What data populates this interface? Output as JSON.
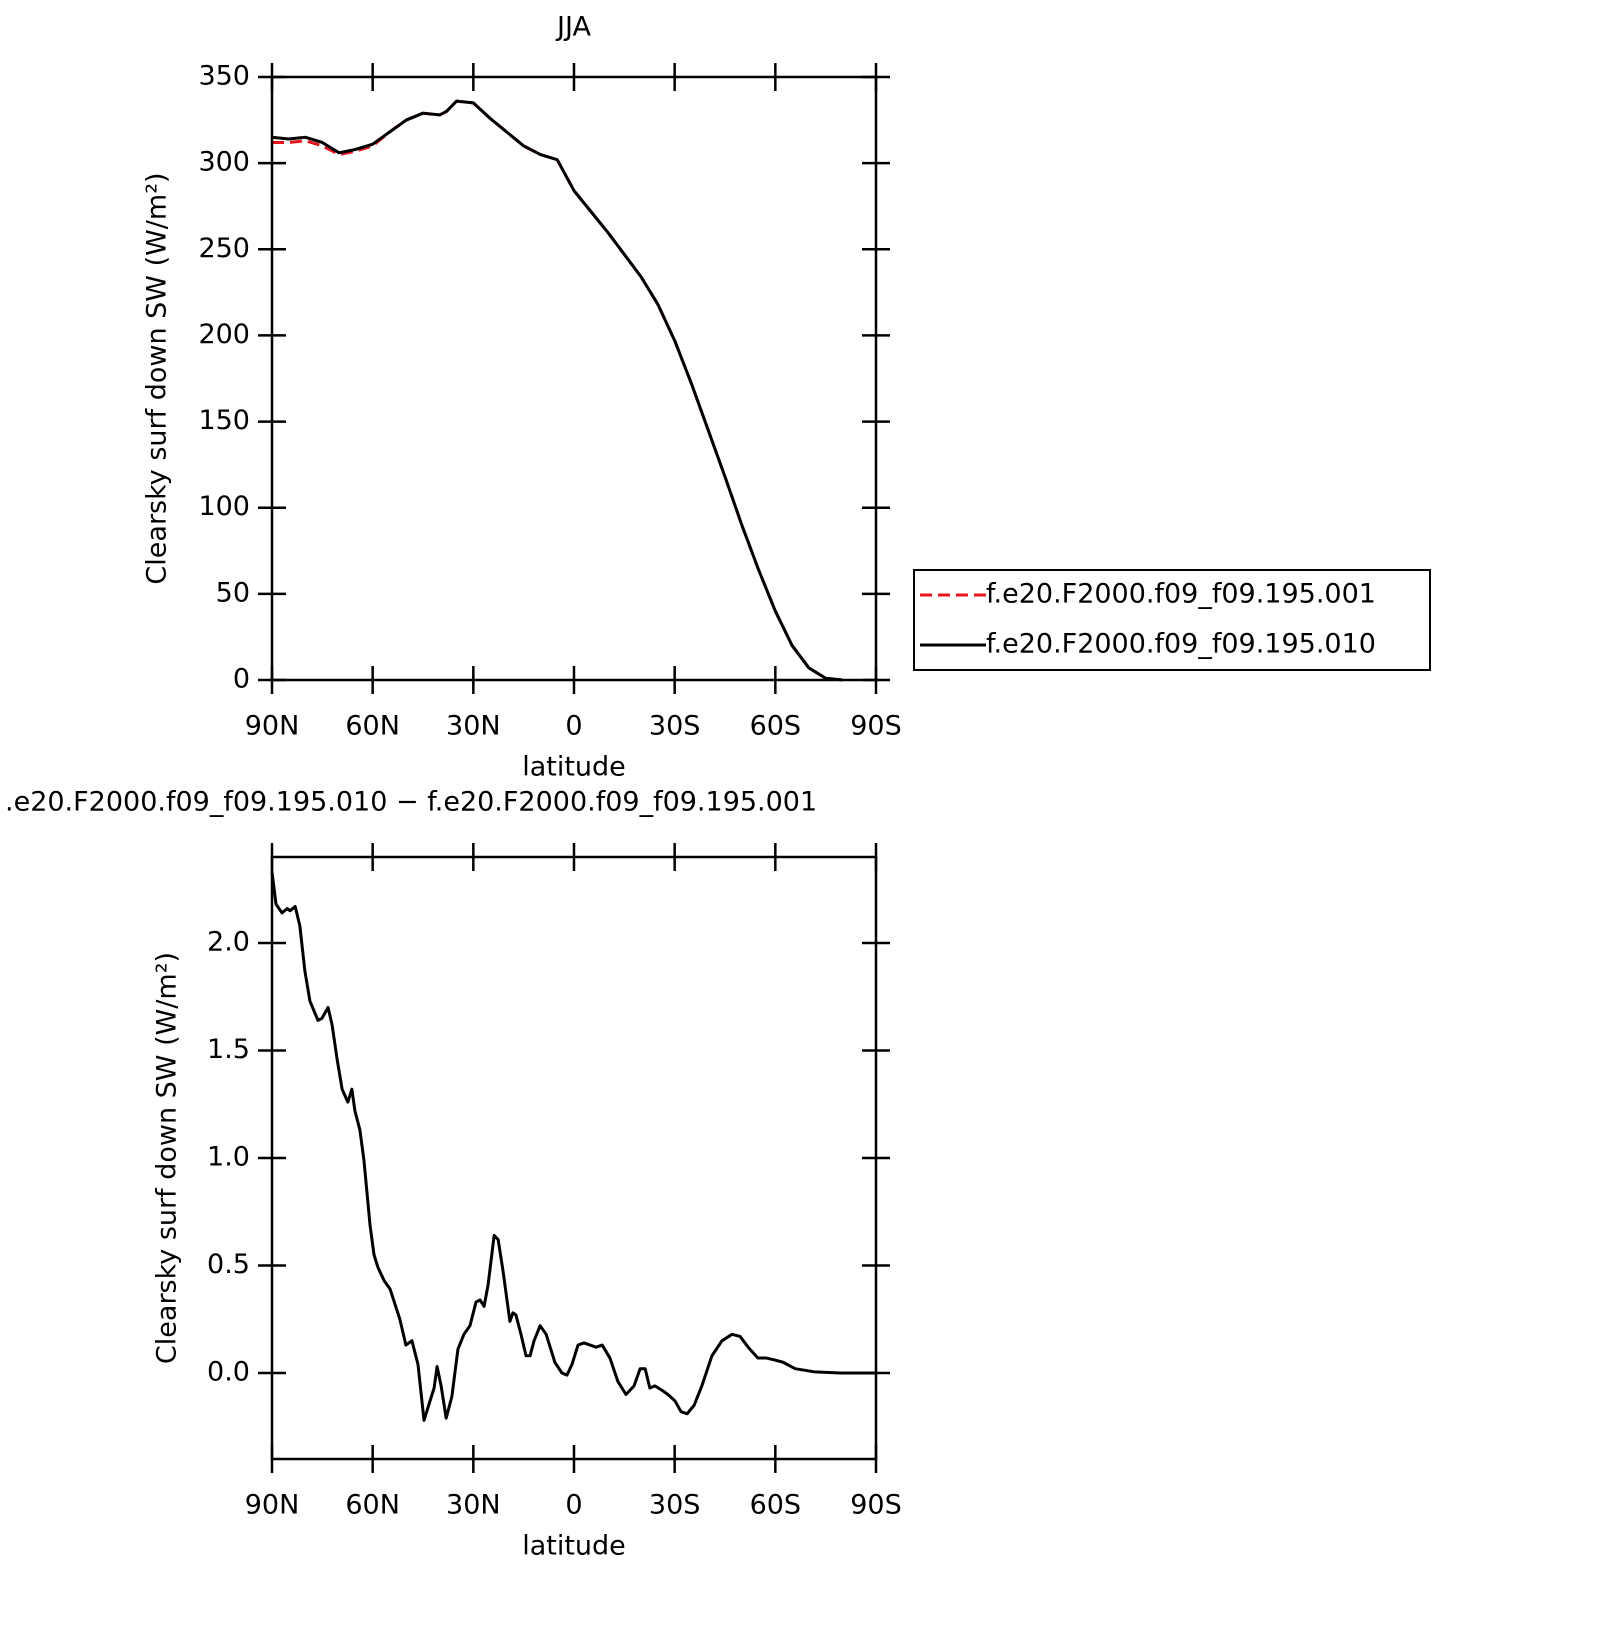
{
  "chart_data": [
    {
      "type": "line",
      "title": "JJA",
      "x_label": "latitude",
      "y_label": "Clearsky surf down SW (W/m²)",
      "x": [
        90,
        85,
        80,
        75,
        70,
        65,
        60,
        55,
        50,
        45,
        40,
        38,
        35,
        30,
        25,
        20,
        15,
        10,
        5,
        0,
        -5,
        -10,
        -15,
        -20,
        -25,
        -30,
        -35,
        -40,
        -45,
        -50,
        -55,
        -60,
        -65,
        -70,
        -75,
        -80
      ],
      "series": [
        {
          "name": "f.e20.F2000.f09_f09.195.001",
          "color": "#e8141b",
          "line_style": "dashed",
          "values": [
            312,
            312,
            313,
            310,
            305,
            307,
            310,
            318,
            325,
            329,
            328,
            330,
            336,
            335,
            326,
            318,
            310,
            305,
            302,
            284,
            272,
            260,
            247,
            234,
            218,
            197,
            172,
            145,
            118,
            90,
            64,
            40,
            20,
            7,
            1,
            0
          ]
        },
        {
          "name": "f.e20.F2000.f09_f09.195.010",
          "color": "#000000",
          "line_style": "solid",
          "values": [
            315,
            314,
            315,
            312,
            306,
            308,
            311,
            318,
            325,
            329,
            328,
            330,
            336,
            335,
            326,
            318,
            310,
            305,
            302,
            284,
            272,
            260,
            247,
            234,
            218,
            197,
            172,
            145,
            118,
            90,
            64,
            40,
            20,
            7,
            1,
            0
          ]
        }
      ],
      "xlim": [
        90,
        -90
      ],
      "xticks": [
        {
          "value": 90,
          "label": "90N"
        },
        {
          "value": 60,
          "label": "60N"
        },
        {
          "value": 30,
          "label": "30N"
        },
        0,
        {
          "value": -30,
          "label": "30S"
        },
        {
          "value": -60,
          "label": "60S"
        },
        {
          "value": -90,
          "label": "90S"
        }
      ],
      "ylim": [
        0,
        350
      ],
      "yticks": [
        0,
        50,
        100,
        150,
        200,
        250,
        300,
        350
      ],
      "legend": "outside-right"
    },
    {
      "type": "line",
      "title": ".e20.F2000.f09_f09.195.010 − f.e20.F2000.f09_f09.195.001",
      "x_label": "latitude",
      "y_label": "Clearsky surf down SW (W/m²)",
      "x": [
        90,
        88.8,
        87.0,
        85.5,
        84.6,
        83.1,
        81.7,
        80.2,
        78.7,
        76.3,
        75.1,
        73.3,
        72.1,
        70.6,
        69.1,
        67.4,
        66.2,
        65.3,
        63.8,
        62.6,
        60.8,
        59.6,
        58.4,
        56.6,
        54.8,
        51.9,
        50.1,
        48.3,
        46.5,
        44.7,
        42.9,
        41.7,
        40.8,
        39.6,
        38.1,
        36.4,
        34.6,
        32.8,
        31.0,
        29.2,
        28.0,
        26.8,
        25.6,
        23.8,
        22.6,
        21.2,
        19.1,
        18.2,
        17.3,
        15.8,
        14.3,
        13.1,
        11.9,
        10.1,
        8.3,
        5.7,
        3.6,
        2.1,
        0.6,
        -1.2,
        -3.0,
        -4.8,
        -6.6,
        -8.4,
        -10.7,
        -13.1,
        -15.5,
        -17.9,
        -19.7,
        -21.2,
        -22.6,
        -24.1,
        -26.2,
        -28.0,
        -30.1,
        -31.9,
        -33.7,
        -35.8,
        -38.1,
        -41.1,
        -44.1,
        -47.1,
        -49.5,
        -51.9,
        -54.8,
        -57.2,
        -59.9,
        -62.3,
        -65.9,
        -71.8,
        -79.3,
        -90
      ],
      "series": [
        {
          "color": "#000000",
          "line_style": "solid",
          "values": [
            2.33,
            2.18,
            2.14,
            2.16,
            2.15,
            2.17,
            2.08,
            1.87,
            1.73,
            1.64,
            1.65,
            1.7,
            1.62,
            1.46,
            1.32,
            1.26,
            1.32,
            1.22,
            1.13,
            0.99,
            0.69,
            0.55,
            0.49,
            0.43,
            0.39,
            0.25,
            0.13,
            0.15,
            0.04,
            -0.22,
            -0.13,
            -0.07,
            0.03,
            -0.06,
            -0.21,
            -0.11,
            0.11,
            0.18,
            0.22,
            0.33,
            0.34,
            0.31,
            0.41,
            0.64,
            0.62,
            0.48,
            0.24,
            0.28,
            0.27,
            0.18,
            0.08,
            0.08,
            0.15,
            0.22,
            0.18,
            0.05,
            0.0,
            -0.01,
            0.04,
            0.13,
            0.14,
            0.13,
            0.12,
            0.13,
            0.07,
            -0.04,
            -0.1,
            -0.06,
            0.02,
            0.02,
            -0.07,
            -0.06,
            -0.08,
            -0.1,
            -0.13,
            -0.18,
            -0.19,
            -0.15,
            -0.06,
            0.08,
            0.15,
            0.18,
            0.17,
            0.12,
            0.07,
            0.07,
            0.06,
            0.05,
            0.02,
            0.005,
            0,
            0
          ]
        }
      ],
      "xlim": [
        90,
        -90
      ],
      "xticks": [
        {
          "value": 90,
          "label": "90N"
        },
        {
          "value": 60,
          "label": "60N"
        },
        {
          "value": 30,
          "label": "30N"
        },
        0,
        {
          "value": -30,
          "label": "30S"
        },
        {
          "value": -60,
          "label": "60S"
        },
        {
          "value": -90,
          "label": "90S"
        }
      ],
      "ylim": [
        -0.4,
        2.4
      ],
      "yticks": [
        {
          "value": 0,
          "label": "0.0"
        },
        {
          "value": 0.5,
          "label": "0.5"
        },
        {
          "value": 1,
          "label": "1.0"
        },
        {
          "value": 1.5,
          "label": "1.5"
        },
        {
          "value": 2,
          "label": "2.0"
        }
      ]
    }
  ]
}
